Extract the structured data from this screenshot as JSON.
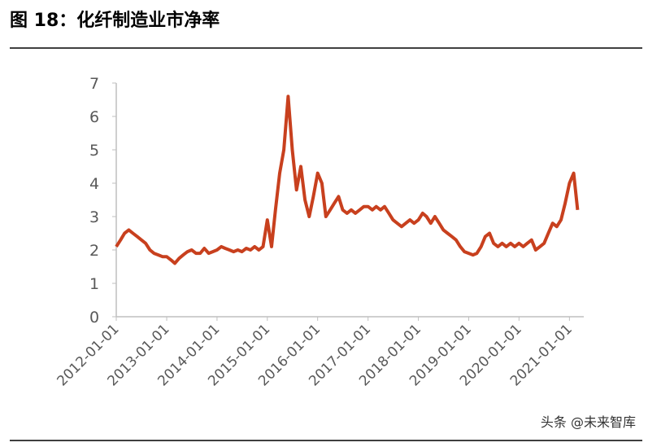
{
  "header": {
    "title": "图 18：化纤制造业市净率"
  },
  "chart_data": {
    "type": "line",
    "x": [
      "2012-01-01",
      "2012-02-01",
      "2012-03-01",
      "2012-04-01",
      "2012-05-01",
      "2012-06-01",
      "2012-07-01",
      "2012-08-01",
      "2012-09-01",
      "2012-10-01",
      "2012-11-01",
      "2012-12-01",
      "2013-01-01",
      "2013-02-01",
      "2013-03-01",
      "2013-04-01",
      "2013-05-01",
      "2013-06-01",
      "2013-07-01",
      "2013-08-01",
      "2013-09-01",
      "2013-10-01",
      "2013-11-01",
      "2013-12-01",
      "2014-01-01",
      "2014-02-01",
      "2014-03-01",
      "2014-04-01",
      "2014-05-01",
      "2014-06-01",
      "2014-07-01",
      "2014-08-01",
      "2014-09-01",
      "2014-10-01",
      "2014-11-01",
      "2014-12-01",
      "2015-01-01",
      "2015-02-01",
      "2015-03-01",
      "2015-04-01",
      "2015-05-01",
      "2015-06-01",
      "2015-07-01",
      "2015-08-01",
      "2015-09-01",
      "2015-10-01",
      "2015-11-01",
      "2015-12-01",
      "2016-01-01",
      "2016-02-01",
      "2016-03-01",
      "2016-04-01",
      "2016-05-01",
      "2016-06-01",
      "2016-07-01",
      "2016-08-01",
      "2016-09-01",
      "2016-10-01",
      "2016-11-01",
      "2016-12-01",
      "2017-01-01",
      "2017-02-01",
      "2017-03-01",
      "2017-04-01",
      "2017-05-01",
      "2017-06-01",
      "2017-07-01",
      "2017-08-01",
      "2017-09-01",
      "2017-10-01",
      "2017-11-01",
      "2017-12-01",
      "2018-01-01",
      "2018-02-01",
      "2018-03-01",
      "2018-04-01",
      "2018-05-01",
      "2018-06-01",
      "2018-07-01",
      "2018-08-01",
      "2018-09-01",
      "2018-10-01",
      "2018-11-01",
      "2018-12-01",
      "2019-01-01",
      "2019-02-01",
      "2019-03-01",
      "2019-04-01",
      "2019-05-01",
      "2019-06-01",
      "2019-07-01",
      "2019-08-01",
      "2019-09-01",
      "2019-10-01",
      "2019-11-01",
      "2019-12-01",
      "2020-01-01",
      "2020-02-01",
      "2020-03-01",
      "2020-04-01",
      "2020-05-01",
      "2020-06-01",
      "2020-07-01",
      "2020-08-01",
      "2020-09-01",
      "2020-10-01",
      "2020-11-01",
      "2020-12-01",
      "2021-01-01",
      "2021-02-01",
      "2021-03-01"
    ],
    "series": [
      {
        "name": "化纤制造业市净率",
        "color": "#c8401e",
        "values": [
          2.1,
          2.3,
          2.5,
          2.6,
          2.5,
          2.4,
          2.3,
          2.2,
          2.0,
          1.9,
          1.85,
          1.8,
          1.8,
          1.7,
          1.6,
          1.75,
          1.85,
          1.95,
          2.0,
          1.9,
          1.9,
          2.05,
          1.9,
          1.95,
          2.0,
          2.1,
          2.05,
          2.0,
          1.95,
          2.0,
          1.95,
          2.05,
          2.0,
          2.1,
          2.0,
          2.1,
          2.9,
          2.1,
          3.2,
          4.3,
          5.0,
          6.6,
          5.0,
          3.8,
          4.5,
          3.5,
          3.0,
          3.6,
          4.3,
          4.0,
          3.0,
          3.2,
          3.4,
          3.6,
          3.2,
          3.1,
          3.2,
          3.1,
          3.2,
          3.3,
          3.3,
          3.2,
          3.3,
          3.2,
          3.3,
          3.1,
          2.9,
          2.8,
          2.7,
          2.8,
          2.9,
          2.8,
          2.9,
          3.1,
          3.0,
          2.8,
          3.0,
          2.8,
          2.6,
          2.5,
          2.4,
          2.3,
          2.1,
          1.95,
          1.9,
          1.85,
          1.9,
          2.1,
          2.4,
          2.5,
          2.2,
          2.1,
          2.2,
          2.1,
          2.2,
          2.1,
          2.2,
          2.1,
          2.2,
          2.3,
          2.0,
          2.1,
          2.2,
          2.5,
          2.8,
          2.7,
          2.9,
          3.4,
          4.0,
          4.3,
          3.2
        ]
      }
    ],
    "xlim": [
      "2012-01-01",
      "2021-04-15"
    ],
    "xticks": [
      "2012-01-01",
      "2013-01-01",
      "2014-01-01",
      "2015-01-01",
      "2016-01-01",
      "2017-01-01",
      "2018-01-01",
      "2019-01-01",
      "2020-01-01",
      "2021-01-01"
    ],
    "ylim": [
      0,
      7
    ],
    "yticks": [
      0,
      1,
      2,
      3,
      4,
      5,
      6,
      7
    ]
  },
  "footer": {
    "watermark": "头条 @未来智库"
  }
}
